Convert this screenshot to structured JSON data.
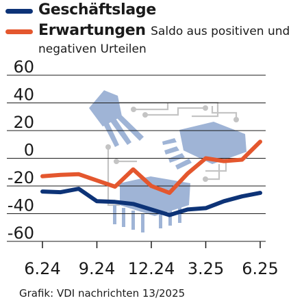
{
  "legend": {
    "business": "Geschäftslage",
    "expectations": "Erwartungen",
    "note_line1": "Saldo aus positiven und",
    "note_line2": "negativen Urteilen"
  },
  "source": "Grafik: VDI nachrichten 13/2025",
  "colors": {
    "business": "#0d3377",
    "expectations": "#e4572e",
    "grid": "#1a1a1a",
    "illustration": "#9fb4d6",
    "circuit": "#c4c4c4"
  },
  "chart_data": {
    "type": "line",
    "title": "",
    "xlabel": "",
    "ylabel": "",
    "ylim": [
      -60,
      60
    ],
    "yticks": [
      "60",
      "40",
      "20",
      "0",
      "-20",
      "-40",
      "-60"
    ],
    "ytick_values": [
      60,
      40,
      20,
      0,
      -20,
      -40,
      -60
    ],
    "xticks": [
      "6.24",
      "9.24",
      "12.24",
      "3.25",
      "6.25"
    ],
    "xtick_positions": [
      0,
      3,
      6,
      9,
      12
    ],
    "x": [
      0,
      1,
      2,
      3,
      4,
      5,
      6,
      7,
      8,
      9,
      10,
      11,
      12
    ],
    "grid": true,
    "legend_position": "top-left",
    "series": [
      {
        "name": "Geschäftslage",
        "values": [
          -24,
          -24.5,
          -22,
          -31,
          -31.5,
          -33,
          -37,
          -41,
          -37,
          -36,
          -31,
          -27.5,
          -25
        ]
      },
      {
        "name": "Erwartungen",
        "values": [
          -13,
          -12,
          -11.5,
          -16,
          -20.5,
          -8,
          -20,
          -25,
          -11,
          0,
          -2,
          -1,
          12
        ]
      }
    ]
  }
}
